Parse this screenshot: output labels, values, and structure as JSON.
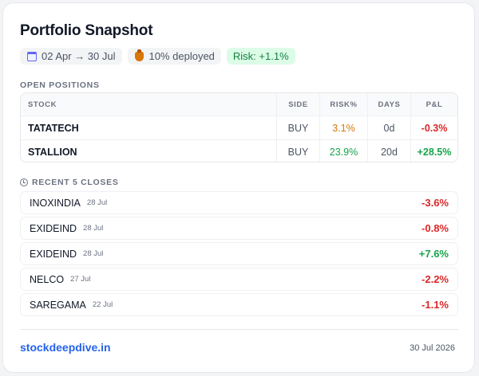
{
  "colors": {
    "positive": "#16a34a",
    "negative": "#dc2626",
    "warn": "#d97706",
    "brand": "#2563eb"
  },
  "header": {
    "title": "Portfolio Snapshot",
    "date_range": {
      "icon": "calendar-icon",
      "text": "02 Apr → 30 Jul"
    },
    "deployed": {
      "icon": "money-bag-icon",
      "text": "10% deployed"
    },
    "risk": "Risk: +1.1%"
  },
  "positions": {
    "label": "OPEN POSITIONS",
    "columns": {
      "stock": "STOCK",
      "side": "SIDE",
      "risk": "RISK%",
      "days": "DAYS",
      "pnl": "P&L"
    },
    "rows": [
      {
        "stock": "TATATECH",
        "side": "BUY",
        "risk": "3.1%",
        "risk_color": "#d97706",
        "days": "0d",
        "pnl": "-0.3%",
        "pnl_color": "#dc2626"
      },
      {
        "stock": "STALLION",
        "side": "BUY",
        "risk": "23.9%",
        "risk_color": "#16a34a",
        "days": "20d",
        "pnl": "+28.5%",
        "pnl_color": "#16a34a"
      }
    ]
  },
  "closes": {
    "icon": "clock-icon",
    "label": "RECENT 5 CLOSES",
    "rows": [
      {
        "name": "INOXINDIA",
        "date": "28 Jul",
        "pnl": "-3.6%",
        "pnl_color": "#dc2626"
      },
      {
        "name": "EXIDEIND",
        "date": "28 Jul",
        "pnl": "-0.8%",
        "pnl_color": "#dc2626"
      },
      {
        "name": "EXIDEIND",
        "date": "28 Jul",
        "pnl": "+7.6%",
        "pnl_color": "#16a34a"
      },
      {
        "name": "NELCO",
        "date": "27 Jul",
        "pnl": "-2.2%",
        "pnl_color": "#dc2626"
      },
      {
        "name": "SAREGAMA",
        "date": "22 Jul",
        "pnl": "-1.1%",
        "pnl_color": "#dc2626"
      }
    ]
  },
  "footer": {
    "brand": "stockdeepdive.in",
    "date": "30 Jul 2026"
  }
}
